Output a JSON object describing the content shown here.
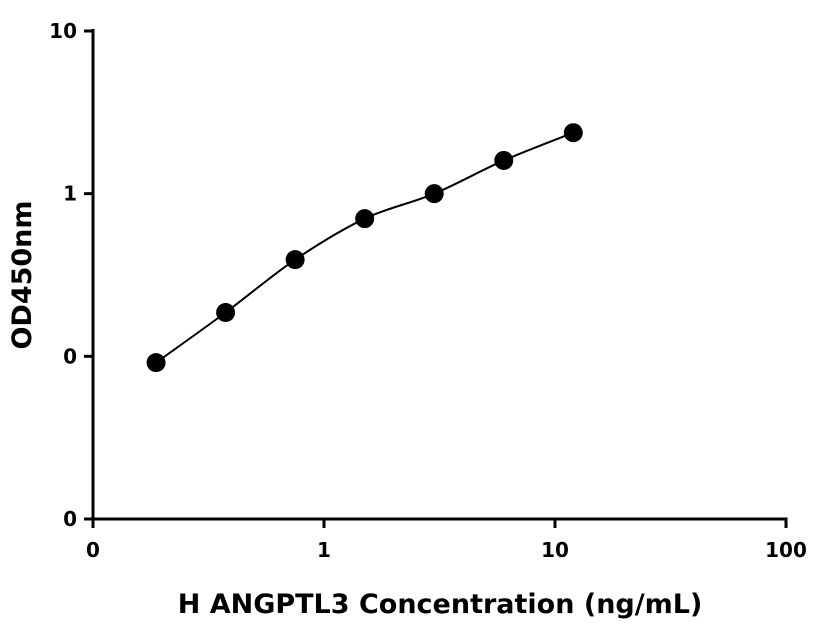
{
  "chart_data": {
    "type": "scatter",
    "xlabel": "H ANGPTL3 Concentration (ng/mL)",
    "ylabel": "OD450nm",
    "x": [
      0.1875,
      0.375,
      0.75,
      1.5,
      3,
      6,
      12
    ],
    "values": [
      0.0915,
      0.186,
      0.393,
      0.702,
      1.0,
      1.6,
      2.37
    ],
    "color": "#000000",
    "xscale": "log",
    "yscale": "log",
    "xlim": [
      0.1,
      100
    ],
    "ylim": [
      0.01,
      10
    ],
    "xticks": [
      {
        "value": 0.1,
        "label": "0"
      },
      1,
      10,
      100
    ],
    "yticks": [
      {
        "value": 0.01,
        "label": "0"
      },
      {
        "value": 0.1,
        "label": "0"
      },
      1,
      10
    ]
  }
}
